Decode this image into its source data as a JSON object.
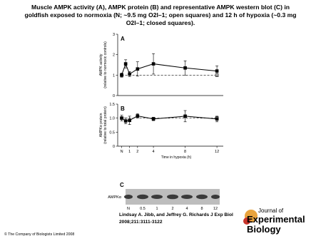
{
  "title": [
    "Muscle AMPK activity (A), AMPK protein (B) and representative AMPK western blot (C) in",
    "goldfish exposed to normoxia (N; ~9.5 mg O2l–1; open squares) and 12 h of hypoxia (~0.3 mg",
    "O2l–1; closed squares)."
  ],
  "chart_data": [
    {
      "type": "line",
      "panel": "A",
      "ylabel": [
        "AMPK activity",
        "(relative to normoxic controls)"
      ],
      "xlim": [
        -0.5,
        12.8
      ],
      "ylim": [
        0,
        3
      ],
      "yticks": [
        0,
        1,
        2,
        3
      ],
      "series": [
        {
          "name": "Normoxia",
          "color": "#000000",
          "marker": "open",
          "dash": true,
          "x": [
            0,
            12
          ],
          "values": [
            1,
            1
          ]
        },
        {
          "name": "Hypoxia",
          "color": "#000000",
          "marker": "filled",
          "dash": false,
          "x": [
            0,
            0.5,
            1,
            2,
            4,
            8,
            12
          ],
          "values": [
            1.0,
            1.55,
            1.05,
            1.3,
            1.55,
            1.35,
            1.2
          ],
          "errors": [
            0.1,
            0.2,
            0.12,
            0.35,
            0.5,
            0.35,
            0.25
          ]
        }
      ]
    },
    {
      "type": "line",
      "panel": "B",
      "ylabel": [
        "AMPKα protein",
        "(relative to total protein)"
      ],
      "xlabel": "Time in hypoxia (h)",
      "xlim": [
        -0.5,
        12.8
      ],
      "xticks": [
        {
          "value": 0,
          "label": "N"
        },
        1,
        2,
        4,
        8,
        12
      ],
      "ylim": [
        0,
        1.5
      ],
      "yticks": [
        0,
        0.5,
        {
          "value": 1,
          "label": "1.0"
        },
        1.5
      ],
      "series": [
        {
          "name": "Normoxia",
          "color": "#000000",
          "marker": "open",
          "dash": true,
          "x": [
            0,
            12
          ],
          "values": [
            1,
            1
          ]
        },
        {
          "name": "Hypoxia",
          "color": "#000000",
          "marker": "filled",
          "dash": false,
          "x": [
            0,
            0.5,
            1,
            2,
            4,
            8,
            12
          ],
          "values": [
            1.0,
            0.9,
            0.92,
            1.08,
            0.97,
            1.07,
            0.97
          ],
          "errors": [
            0.1,
            0.1,
            0.15,
            0.08,
            0.06,
            0.2,
            0.1
          ]
        }
      ]
    }
  ],
  "blot": {
    "panel": "C",
    "label": "AMPKα",
    "lanes": [
      "N",
      "0.5",
      "1",
      "2",
      "4",
      "8",
      "12"
    ]
  },
  "citation": [
    "Lindsay A. Jibb, and Jeffrey G. Richards J Exp Biol",
    "2008;211:3111-3122"
  ],
  "logo": [
    "Journal of",
    "Experimental",
    "Biology"
  ],
  "copyright": "© The Company of Biologists Limited 2008"
}
